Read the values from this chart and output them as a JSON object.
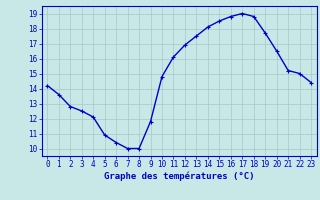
{
  "hours": [
    0,
    1,
    2,
    3,
    4,
    5,
    6,
    7,
    8,
    9,
    10,
    11,
    12,
    13,
    14,
    15,
    16,
    17,
    18,
    19,
    20,
    21,
    22,
    23
  ],
  "temperatures": [
    14.2,
    13.6,
    12.8,
    12.5,
    12.1,
    10.9,
    10.4,
    10.0,
    10.0,
    11.8,
    14.8,
    16.1,
    16.9,
    17.5,
    18.1,
    18.5,
    18.8,
    19.0,
    18.8,
    17.7,
    16.5,
    15.2,
    15.0,
    14.4
  ],
  "line_color": "#0000cc",
  "marker": "+",
  "marker_size": 3,
  "bg_color": "#c8e8e8",
  "plot_bg_color": "#c8e8e8",
  "grid_color": "#a8c8c8",
  "axis_color": "#0000cc",
  "tick_color": "#0000cc",
  "xlabel": "Graphe des températures (°C)",
  "xlabel_color": "#0000cc",
  "ylim": [
    9.5,
    19.5
  ],
  "yticks": [
    10,
    11,
    12,
    13,
    14,
    15,
    16,
    17,
    18,
    19
  ],
  "xticks": [
    0,
    1,
    2,
    3,
    4,
    5,
    6,
    7,
    8,
    9,
    10,
    11,
    12,
    13,
    14,
    15,
    16,
    17,
    18,
    19,
    20,
    21,
    22,
    23
  ],
  "tick_fontsize": 5.5,
  "xlabel_fontsize": 6.5,
  "line_width": 1.0,
  "marker_edge_width": 0.8
}
